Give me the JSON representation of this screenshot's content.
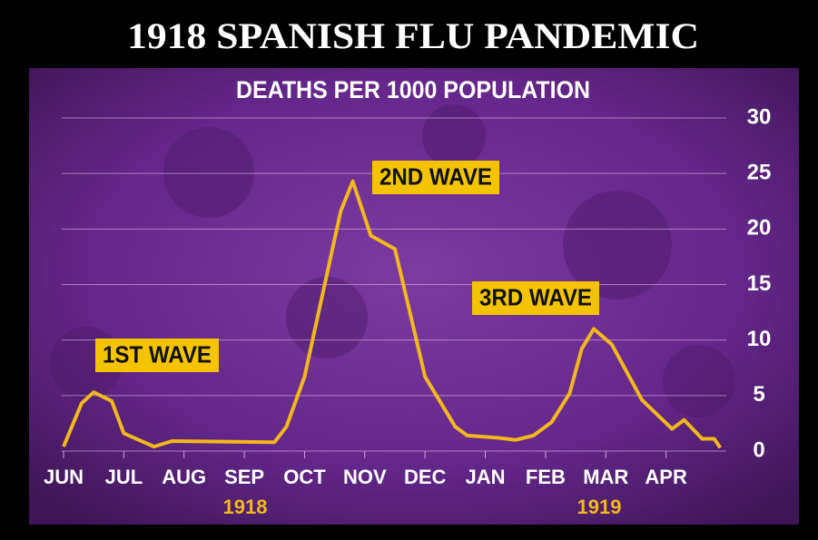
{
  "chart_data": {
    "type": "line",
    "title": "1918 SPANISH FLU PANDEMIC",
    "subtitle": "DEATHS PER 1000 POPULATION",
    "annotations": [
      "1ST WAVE",
      "2ND WAVE",
      "3RD WAVE"
    ],
    "year_labels": [
      "1918",
      "1919"
    ],
    "x": [
      0,
      0.3,
      0.5,
      0.8,
      1.0,
      1.5,
      1.8,
      3.5,
      3.7,
      4.0,
      4.6,
      4.8,
      5.1,
      5.5,
      6.0,
      6.5,
      6.7,
      7.2,
      7.5,
      7.8,
      8.1,
      8.4,
      8.6,
      8.8,
      9.1,
      9.6,
      10.1,
      10.3,
      10.6,
      10.8,
      10.9
    ],
    "series": [
      {
        "name": "Deaths per 1000",
        "color": "#f2b81c",
        "values": [
          0.4,
          4.3,
          5.3,
          4.5,
          1.6,
          0.4,
          0.9,
          0.8,
          2.2,
          6.7,
          21.6,
          24.3,
          19.4,
          18.2,
          6.7,
          2.2,
          1.4,
          1.2,
          1.0,
          1.4,
          2.6,
          5.2,
          9.2,
          11.0,
          9.6,
          4.6,
          2.0,
          2.8,
          1.1,
          1.1,
          0.3
        ]
      }
    ],
    "xlim": [
      0,
      11
    ],
    "xticks": [
      {
        "value": 0,
        "label": "JUN"
      },
      {
        "value": 1,
        "label": "JUL"
      },
      {
        "value": 2,
        "label": "AUG"
      },
      {
        "value": 3,
        "label": "SEP"
      },
      {
        "value": 4,
        "label": "OCT"
      },
      {
        "value": 5,
        "label": "NOV"
      },
      {
        "value": 6,
        "label": "DEC"
      },
      {
        "value": 7,
        "label": "JAN"
      },
      {
        "value": 8,
        "label": "FEB"
      },
      {
        "value": 9,
        "label": "MAR"
      },
      {
        "value": 10,
        "label": "APR"
      }
    ],
    "ylim": [
      0,
      30
    ],
    "yticks": [
      0,
      5,
      10,
      15,
      20,
      25,
      30
    ],
    "grid": true
  }
}
